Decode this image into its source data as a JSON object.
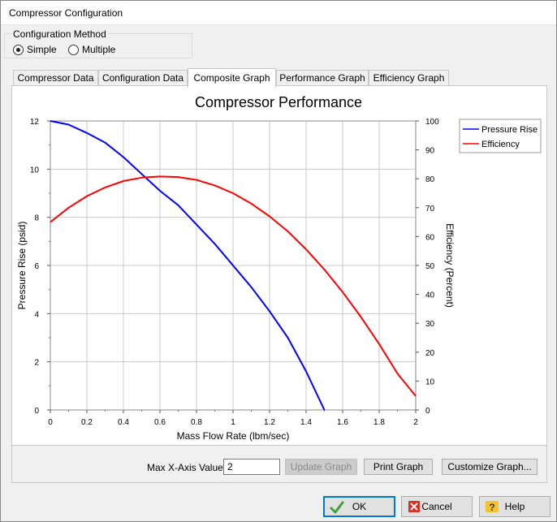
{
  "window": {
    "title": "Compressor Configuration"
  },
  "config_method": {
    "legend": "Configuration Method",
    "options": [
      {
        "label": "Simple",
        "selected": true
      },
      {
        "label": "Multiple",
        "selected": false
      }
    ]
  },
  "tabs": [
    {
      "label": "Compressor Data",
      "active": false
    },
    {
      "label": "Configuration Data",
      "active": false
    },
    {
      "label": "Composite Graph",
      "active": true
    },
    {
      "label": "Performance Graph",
      "active": false
    },
    {
      "label": "Efficiency Graph",
      "active": false
    }
  ],
  "chart_data": {
    "type": "line",
    "title": "Compressor Performance",
    "xlabel": "Mass Flow Rate (lbm/sec)",
    "ylabel_left": "Pressure Rise (psid)",
    "ylabel_right": "Efficiency (Percent)",
    "xlim": [
      0,
      2
    ],
    "ylim_left": [
      0,
      12
    ],
    "ylim_right": [
      0,
      100
    ],
    "x_ticks": [
      "0",
      "0.2",
      "0.4",
      "0.6",
      "0.8",
      "1",
      "1.2",
      "1.4",
      "1.6",
      "1.8",
      "2"
    ],
    "y_left_ticks": [
      "0",
      "2",
      "4",
      "6",
      "8",
      "10",
      "12"
    ],
    "y_right_ticks": [
      "0",
      "10",
      "20",
      "30",
      "40",
      "50",
      "60",
      "70",
      "80",
      "90",
      "100"
    ],
    "grid": true,
    "legend_position": "top-right",
    "series": [
      {
        "name": "Pressure Rise",
        "axis": "left",
        "color": "#0000ff",
        "x": [
          0,
          0.1,
          0.2,
          0.3,
          0.4,
          0.5,
          0.6,
          0.7,
          0.8,
          0.9,
          1.0,
          1.1,
          1.2,
          1.3,
          1.4,
          1.5
        ],
        "y": [
          12.0,
          11.85,
          11.5,
          11.1,
          10.5,
          9.8,
          9.1,
          8.5,
          7.7,
          6.9,
          6.0,
          5.1,
          4.1,
          3.0,
          1.6,
          0.0
        ]
      },
      {
        "name": "Efficiency",
        "axis": "right",
        "color": "#ff0000",
        "x": [
          0,
          0.1,
          0.2,
          0.3,
          0.4,
          0.5,
          0.6,
          0.7,
          0.8,
          0.9,
          1.0,
          1.1,
          1.2,
          1.3,
          1.4,
          1.5,
          1.6,
          1.7,
          1.8,
          1.9,
          2.0
        ],
        "y": [
          65.0,
          70.0,
          74.0,
          77.0,
          79.2,
          80.4,
          80.8,
          80.6,
          79.6,
          77.7,
          75.0,
          71.4,
          67.0,
          61.8,
          55.6,
          48.6,
          40.8,
          32.2,
          22.8,
          12.6,
          4.8
        ]
      }
    ]
  },
  "controls": {
    "max_x_label": "Max X-Axis Value:",
    "max_x_value": "2",
    "update_graph": "Update Graph",
    "print_graph": "Print Graph",
    "customize_graph": "Customize Graph..."
  },
  "footer": {
    "ok": "OK",
    "cancel": "Cancel",
    "help": "Help"
  }
}
